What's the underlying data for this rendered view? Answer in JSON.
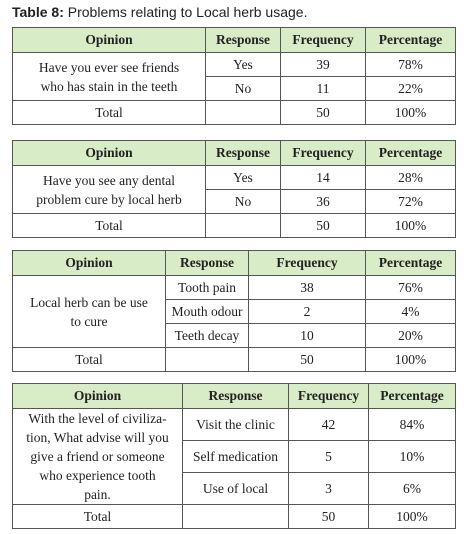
{
  "title_label": "Table 8:",
  "title_text": "Problems relating to Local herb usage.",
  "tables": [
    {
      "header": [
        "Opinion",
        "Response",
        "Frequency",
        "Percentage"
      ],
      "question": [
        "Have you ever see friends",
        "who has stain in the teeth"
      ],
      "rows": [
        [
          "Yes",
          "39",
          "78%"
        ],
        [
          "No",
          "11",
          "22%"
        ]
      ],
      "total": [
        "Total",
        "50",
        "100%"
      ]
    },
    {
      "header": [
        "Opinion",
        "Response",
        "Frequency",
        "Percentage"
      ],
      "question": [
        "Have you see any dental",
        "problem cure by local herb"
      ],
      "rows": [
        [
          "Yes",
          "14",
          "28%"
        ],
        [
          "No",
          "36",
          "72%"
        ]
      ],
      "total": [
        "Total",
        "50",
        "100%"
      ]
    },
    {
      "header": [
        "Opinion",
        "Response",
        "Frequency",
        "Percentage"
      ],
      "question": [
        "Local herb can be use",
        "to cure"
      ],
      "rows": [
        [
          "Tooth pain",
          "38",
          "76%"
        ],
        [
          "Mouth odour",
          "2",
          "4%"
        ],
        [
          "Teeth decay",
          "10",
          "20%"
        ]
      ],
      "total": [
        "Total",
        "50",
        "100%"
      ]
    },
    {
      "header": [
        "Opinion",
        "Response",
        "Frequency",
        "Percentage"
      ],
      "question": [
        "With the level of civiliza-",
        "tion, What advise will you",
        "give a friend or someone",
        "who experience tooth",
        "pain."
      ],
      "rows": [
        [
          "Visit the clinic",
          "42",
          "84%"
        ],
        [
          "Self medication",
          "5",
          "10%"
        ],
        [
          "Use of local",
          "3",
          "6%"
        ]
      ],
      "total": [
        "Total",
        "50",
        "100%"
      ]
    }
  ]
}
